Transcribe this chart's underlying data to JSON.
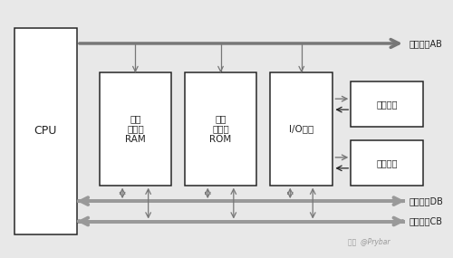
{
  "bg_color": "#e8e8e8",
  "box_facecolor": "white",
  "box_edge": "#333333",
  "black": "#222222",
  "gray": "#999999",
  "gray_dark": "#777777",
  "cpu_label": "CPU",
  "ram_label": "随机\n存储器\nRAM",
  "rom_label": "只读\n存储器\nROM",
  "io_label": "I/O接口",
  "input_label": "输入设备",
  "output_label": "输出设备",
  "addr_label": "地址总线AB",
  "data_label": "数据总线DB",
  "ctrl_label": "控制总线CB",
  "watermark": "知乎  @Prybar",
  "figsize": [
    5.0,
    2.85
  ],
  "dpi": 100
}
